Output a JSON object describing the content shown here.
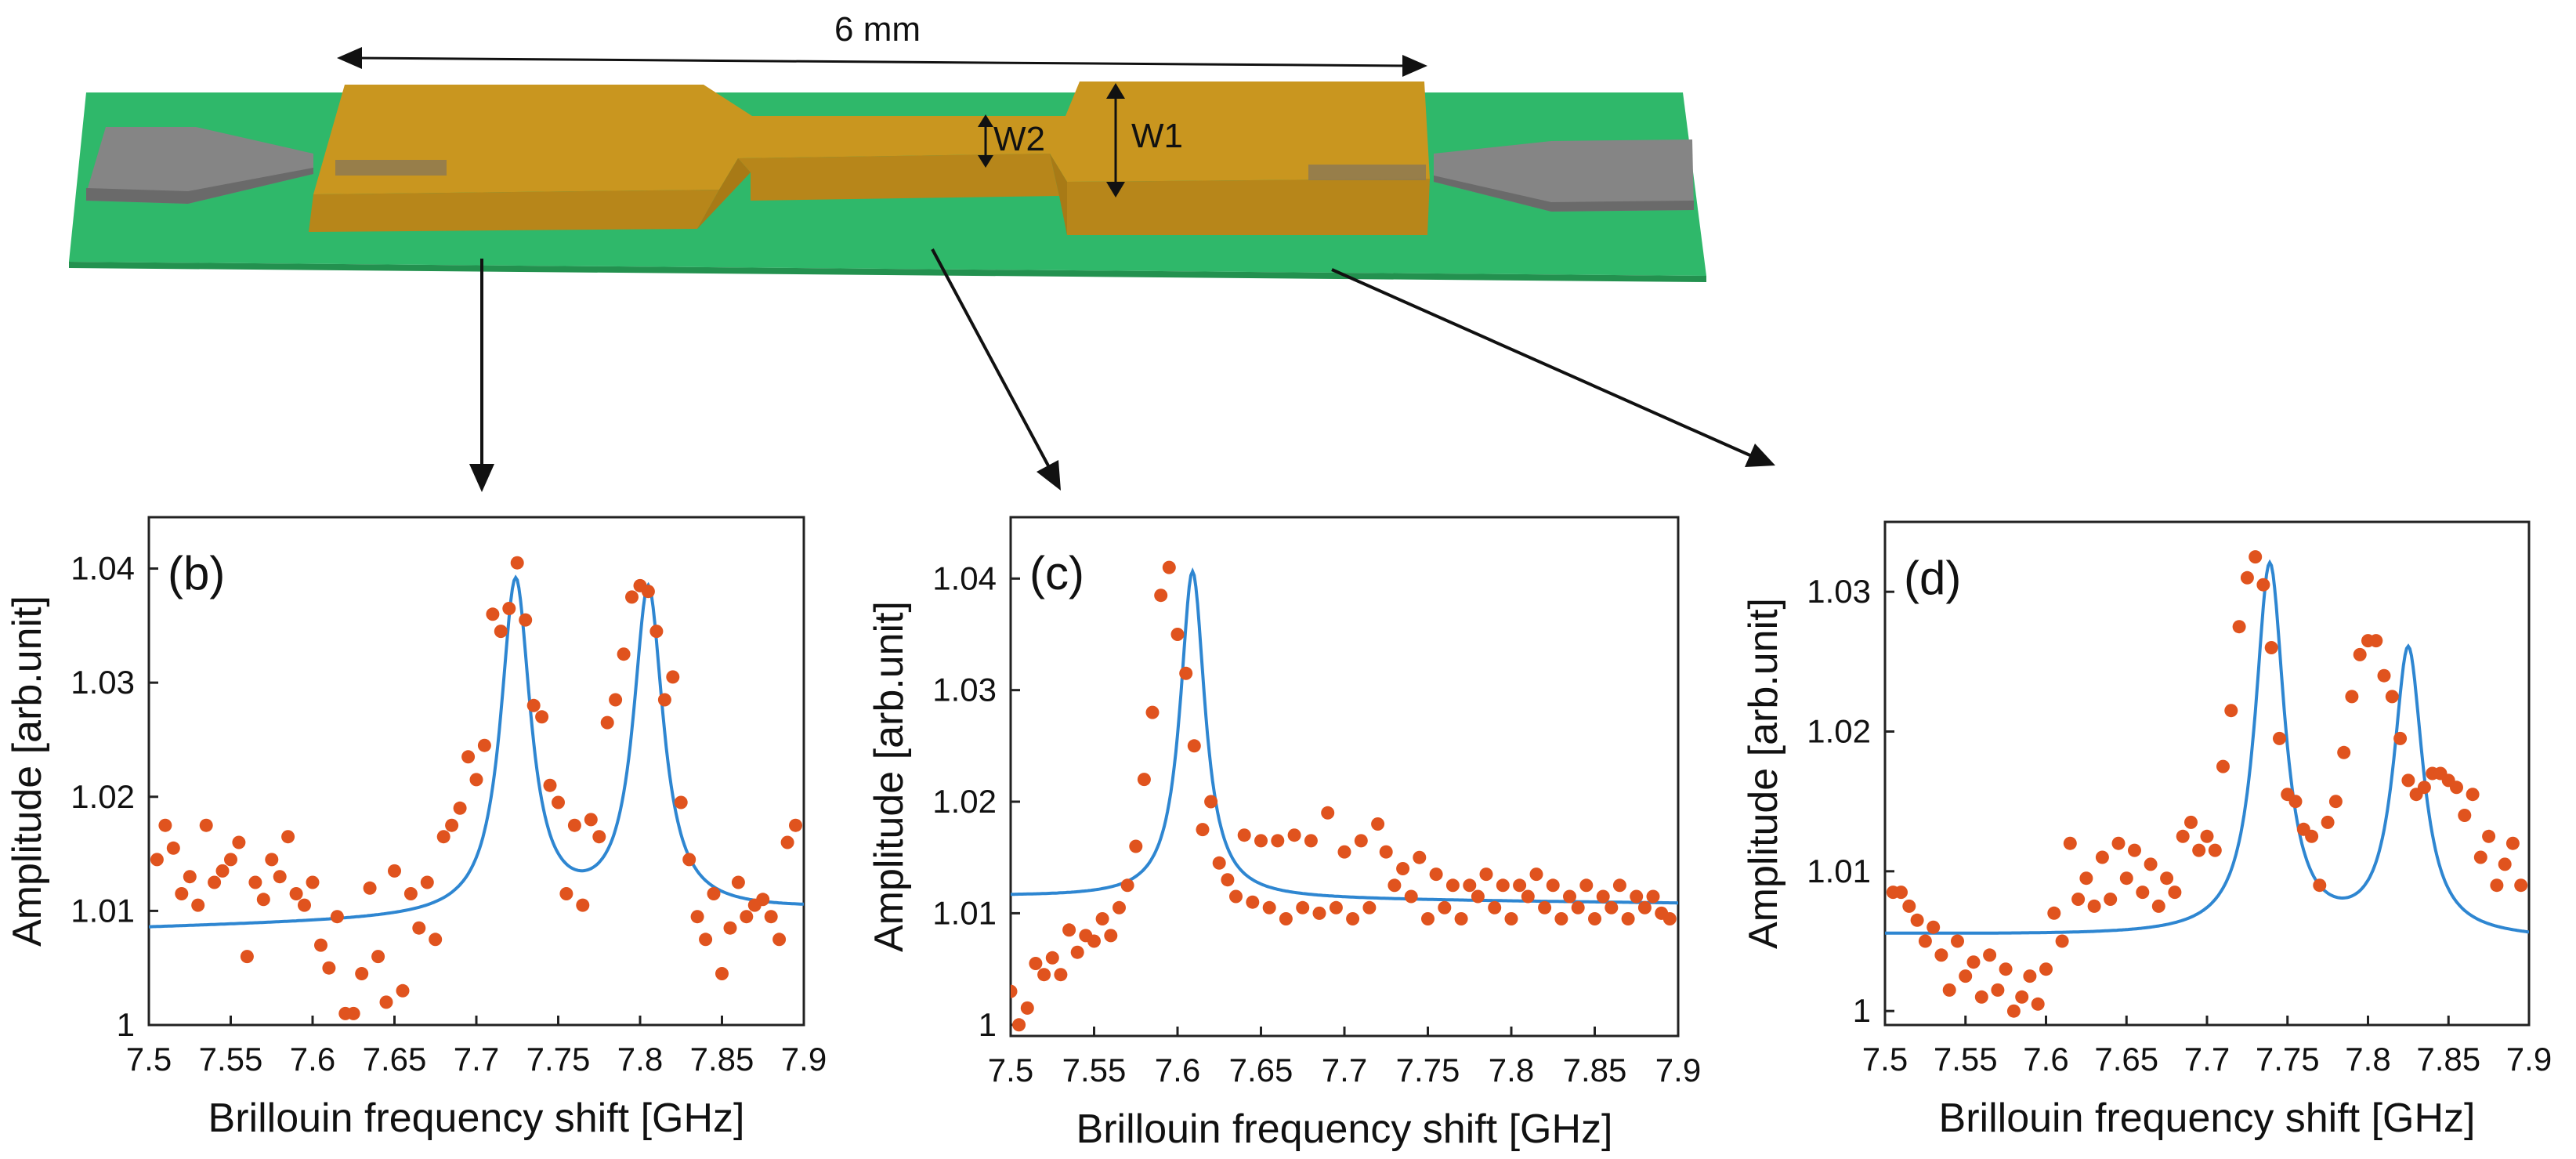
{
  "figure": {
    "length_label": "6 mm",
    "w1_label": "W1",
    "w2_label": "W2"
  },
  "colors": {
    "fit": "#2e86d1",
    "data": "#e0531e",
    "gold": "#c9961f",
    "board": "#2fb86a",
    "grey": "#7d7d7d"
  },
  "chart_data": [
    {
      "type": "scatter",
      "panel_label": "(b)",
      "xlabel": "Brillouin frequency shift [GHz]",
      "ylabel": "Amplitude [arb.unit]",
      "xlim": [
        7.5,
        7.9
      ],
      "ylim": [
        1.0,
        1.0445
      ],
      "xticks": [
        "7.5",
        "7.55",
        "7.6",
        "7.65",
        "7.7",
        "7.75",
        "7.8",
        "7.85",
        "7.9"
      ],
      "yticks": [
        "1",
        "1.01",
        "1.02",
        "1.03",
        "1.04"
      ],
      "fit": {
        "baseline": 1.0085,
        "slope": 0.004,
        "peaks": [
          {
            "center": 7.724,
            "amplitude": 0.0293,
            "hwhm": 0.011
          },
          {
            "center": 7.805,
            "amplitude": 0.0283,
            "hwhm": 0.011
          }
        ]
      },
      "series": [
        {
          "kind": "measured",
          "x": [
            7.505,
            7.51,
            7.515,
            7.52,
            7.525,
            7.53,
            7.535,
            7.54,
            7.545,
            7.55,
            7.555,
            7.56,
            7.565,
            7.57,
            7.575,
            7.58,
            7.585,
            7.59,
            7.595,
            7.6,
            7.605,
            7.61,
            7.615,
            7.62,
            7.625,
            7.63,
            7.635,
            7.64,
            7.645,
            7.65,
            7.655,
            7.66,
            7.665,
            7.67,
            7.675,
            7.68,
            7.685,
            7.69,
            7.695,
            7.7,
            7.705,
            7.71,
            7.715,
            7.72,
            7.725,
            7.73,
            7.735,
            7.74,
            7.745,
            7.75,
            7.755,
            7.76,
            7.765,
            7.77,
            7.775,
            7.78,
            7.785,
            7.79,
            7.795,
            7.8,
            7.805,
            7.81,
            7.815,
            7.82,
            7.825,
            7.83,
            7.835,
            7.84,
            7.845,
            7.85,
            7.855,
            7.86,
            7.865,
            7.87,
            7.875,
            7.88,
            7.885,
            7.89,
            7.895
          ],
          "values": [
            1.0145,
            1.0175,
            1.0155,
            1.0115,
            1.013,
            1.0105,
            1.0175,
            1.0125,
            1.0135,
            1.0145,
            1.016,
            1.006,
            1.0125,
            1.011,
            1.0145,
            1.013,
            1.0165,
            1.0115,
            1.0105,
            1.0125,
            1.007,
            1.005,
            1.0095,
            1.001,
            1.001,
            1.0045,
            1.012,
            1.006,
            1.002,
            1.0135,
            1.003,
            1.0115,
            1.0085,
            1.0125,
            1.0075,
            1.0165,
            1.0175,
            1.019,
            1.0235,
            1.0215,
            1.0245,
            1.036,
            1.0345,
            1.0365,
            1.0405,
            1.0355,
            1.028,
            1.027,
            1.021,
            1.0195,
            1.0115,
            1.0175,
            1.0105,
            1.018,
            1.0165,
            1.0265,
            1.0285,
            1.0325,
            1.0375,
            1.0385,
            1.038,
            1.0345,
            1.0285,
            1.0305,
            1.0195,
            1.0145,
            1.0095,
            1.0075,
            1.0115,
            1.0045,
            1.0085,
            1.0125,
            1.0095,
            1.0105,
            1.011,
            1.0095,
            1.0075,
            1.016,
            1.0175
          ]
        }
      ]
    },
    {
      "type": "scatter",
      "panel_label": "(c)",
      "xlabel": "Brillouin frequency shift [GHz]",
      "ylabel": "Amplitude [arb.unit]",
      "xlim": [
        7.5,
        7.9
      ],
      "ylim": [
        0.999,
        1.0455
      ],
      "xticks": [
        "7.5",
        "7.55",
        "7.6",
        "7.65",
        "7.7",
        "7.75",
        "7.8",
        "7.85",
        "7.9"
      ],
      "yticks": [
        "1",
        "1.01",
        "1.02",
        "1.03",
        "1.04"
      ],
      "fit": {
        "baseline": 1.0115,
        "slope": -0.0015,
        "peaks": [
          {
            "center": 7.609,
            "amplitude": 0.0293,
            "hwhm": 0.009
          }
        ]
      },
      "series": [
        {
          "kind": "measured",
          "x": [
            7.5,
            7.505,
            7.51,
            7.515,
            7.52,
            7.525,
            7.53,
            7.535,
            7.54,
            7.545,
            7.55,
            7.555,
            7.56,
            7.565,
            7.57,
            7.575,
            7.58,
            7.585,
            7.59,
            7.595,
            7.6,
            7.605,
            7.61,
            7.615,
            7.62,
            7.625,
            7.63,
            7.635,
            7.64,
            7.645,
            7.65,
            7.655,
            7.66,
            7.665,
            7.67,
            7.675,
            7.68,
            7.685,
            7.69,
            7.695,
            7.7,
            7.705,
            7.71,
            7.715,
            7.72,
            7.725,
            7.73,
            7.735,
            7.74,
            7.745,
            7.75,
            7.755,
            7.76,
            7.765,
            7.77,
            7.775,
            7.78,
            7.785,
            7.79,
            7.795,
            7.8,
            7.805,
            7.81,
            7.815,
            7.82,
            7.825,
            7.83,
            7.835,
            7.84,
            7.845,
            7.85,
            7.855,
            7.86,
            7.865,
            7.87,
            7.875,
            7.88,
            7.885,
            7.89,
            7.895
          ],
          "values": [
            1.003,
            1.0,
            1.0015,
            1.0055,
            1.0045,
            1.006,
            1.0045,
            1.0085,
            1.0065,
            1.008,
            1.0075,
            1.0095,
            1.008,
            1.0105,
            1.0125,
            1.016,
            1.022,
            1.028,
            1.0385,
            1.041,
            1.035,
            1.0315,
            1.025,
            1.0175,
            1.02,
            1.0145,
            1.013,
            1.0115,
            1.017,
            1.011,
            1.0165,
            1.0105,
            1.0165,
            1.0095,
            1.017,
            1.0105,
            1.0165,
            1.01,
            1.019,
            1.0105,
            1.0155,
            1.0095,
            1.0165,
            1.0105,
            1.018,
            1.0155,
            1.0125,
            1.014,
            1.0115,
            1.015,
            1.0095,
            1.0135,
            1.0105,
            1.0125,
            1.0095,
            1.0125,
            1.0115,
            1.0135,
            1.0105,
            1.0125,
            1.0095,
            1.0125,
            1.0115,
            1.0135,
            1.0105,
            1.0125,
            1.0095,
            1.0115,
            1.0105,
            1.0125,
            1.0095,
            1.0115,
            1.0105,
            1.0125,
            1.0095,
            1.0115,
            1.0105,
            1.0115,
            1.01,
            1.0095
          ]
        }
      ]
    },
    {
      "type": "scatter",
      "panel_label": "(d)",
      "xlabel": "Brillouin frequency shift [GHz]",
      "ylabel": "Amplitude [arb.unit]",
      "xlim": [
        7.5,
        7.9
      ],
      "ylim": [
        0.999,
        1.035
      ],
      "xticks": [
        "7.5",
        "7.55",
        "7.6",
        "7.65",
        "7.7",
        "7.75",
        "7.8",
        "7.85",
        "7.9"
      ],
      "yticks": [
        "1",
        "1.01",
        "1.02",
        "1.03"
      ],
      "fit": {
        "baseline": 1.0055,
        "slope": -0.001,
        "peaks": [
          {
            "center": 7.739,
            "amplitude": 0.0265,
            "hwhm": 0.011
          },
          {
            "center": 7.825,
            "amplitude": 0.0205,
            "hwhm": 0.011
          }
        ]
      },
      "series": [
        {
          "kind": "measured",
          "x": [
            7.505,
            7.51,
            7.515,
            7.52,
            7.525,
            7.53,
            7.535,
            7.54,
            7.545,
            7.55,
            7.555,
            7.56,
            7.565,
            7.57,
            7.575,
            7.58,
            7.585,
            7.59,
            7.595,
            7.6,
            7.605,
            7.61,
            7.615,
            7.62,
            7.625,
            7.63,
            7.635,
            7.64,
            7.645,
            7.65,
            7.655,
            7.66,
            7.665,
            7.67,
            7.675,
            7.68,
            7.685,
            7.69,
            7.695,
            7.7,
            7.705,
            7.71,
            7.715,
            7.72,
            7.725,
            7.73,
            7.735,
            7.74,
            7.745,
            7.75,
            7.755,
            7.76,
            7.765,
            7.77,
            7.775,
            7.78,
            7.785,
            7.79,
            7.795,
            7.8,
            7.805,
            7.81,
            7.815,
            7.82,
            7.825,
            7.83,
            7.835,
            7.84,
            7.845,
            7.85,
            7.855,
            7.86,
            7.865,
            7.87,
            7.875,
            7.88,
            7.885,
            7.89,
            7.895
          ],
          "values": [
            1.0085,
            1.0085,
            1.0075,
            1.0065,
            1.005,
            1.006,
            1.004,
            1.0015,
            1.005,
            1.0025,
            1.0035,
            1.001,
            1.004,
            1.0015,
            1.003,
            1.0,
            1.001,
            1.0025,
            1.0005,
            1.003,
            1.007,
            1.005,
            1.012,
            1.008,
            1.0095,
            1.0075,
            1.011,
            1.008,
            1.012,
            1.0095,
            1.0115,
            1.0085,
            1.0105,
            1.0075,
            1.0095,
            1.0085,
            1.0125,
            1.0135,
            1.0115,
            1.0125,
            1.0115,
            1.0175,
            1.0215,
            1.0275,
            1.031,
            1.0325,
            1.0305,
            1.026,
            1.0195,
            1.0155,
            1.015,
            1.013,
            1.0125,
            1.009,
            1.0135,
            1.015,
            1.0185,
            1.0225,
            1.0255,
            1.0265,
            1.0265,
            1.024,
            1.0225,
            1.0195,
            1.0165,
            1.0155,
            1.016,
            1.017,
            1.017,
            1.0165,
            1.016,
            1.014,
            1.0155,
            1.011,
            1.0125,
            1.009,
            1.0105,
            1.012,
            1.009
          ]
        }
      ]
    }
  ]
}
